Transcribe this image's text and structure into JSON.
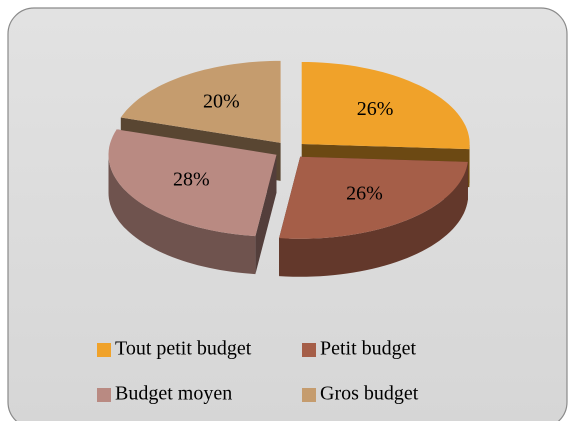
{
  "chart_data": {
    "type": "pie",
    "categories": [
      "Tout petit budget",
      "Petit budget",
      "Budget moyen",
      "Gros budget"
    ],
    "values": [
      26,
      26,
      28,
      20
    ],
    "value_labels": [
      "26%",
      "26%",
      "28%",
      "20%"
    ],
    "colors": [
      "#f0a22a",
      "#a55e48",
      "#b98a82",
      "#c59c6e"
    ],
    "legend": "bottom"
  }
}
